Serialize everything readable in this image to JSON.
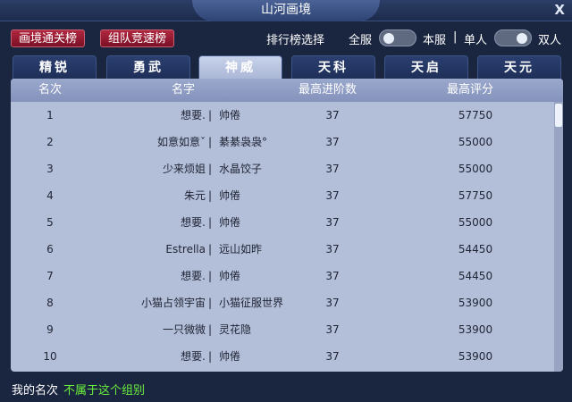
{
  "window": {
    "title": "山河画境",
    "close": "X"
  },
  "top_buttons": [
    "画境通关榜",
    "组队竞速榜"
  ],
  "filter": {
    "label": "排行榜选择",
    "server_left": "全服",
    "server_right": "本服",
    "divider": "|",
    "mode_left": "单人",
    "mode_right": "双人",
    "server_toggle": "全服",
    "mode_toggle": "双人"
  },
  "tabs": [
    "精锐",
    "勇武",
    "神威",
    "天科",
    "天启",
    "天元"
  ],
  "active_tab": "神威",
  "table": {
    "headers": [
      "名次",
      "名字",
      "最高进阶数",
      "最高评分"
    ],
    "rows": [
      {
        "rank": "1",
        "left": "想要.",
        "right": "帅倦",
        "stage": "37",
        "score": "57750"
      },
      {
        "rank": "2",
        "left": "如意如意ˇ",
        "right": "綦綦袅袅°",
        "stage": "37",
        "score": "55000"
      },
      {
        "rank": "3",
        "left": "少来烦姐",
        "right": "水晶饺子",
        "stage": "37",
        "score": "55000"
      },
      {
        "rank": "4",
        "left": "朱元",
        "right": "帅倦",
        "stage": "37",
        "score": "57750"
      },
      {
        "rank": "5",
        "left": "想要.",
        "right": "帅倦",
        "stage": "37",
        "score": "55000"
      },
      {
        "rank": "6",
        "left": "Estrella",
        "right": "远山如昨",
        "stage": "37",
        "score": "54450"
      },
      {
        "rank": "7",
        "left": "想要.",
        "right": "帅倦",
        "stage": "37",
        "score": "54450"
      },
      {
        "rank": "8",
        "left": "小猫占领宇宙",
        "right": "小猫征服世界",
        "stage": "37",
        "score": "53900"
      },
      {
        "rank": "9",
        "left": "一只微微",
        "right": "灵花隐",
        "stage": "37",
        "score": "53900"
      },
      {
        "rank": "10",
        "left": "想要.",
        "right": "帅倦",
        "stage": "37",
        "score": "53900"
      }
    ]
  },
  "footer": {
    "label": "我的名次",
    "status": "不属于这个组别"
  },
  "colors": {
    "status": "#6bf03c",
    "accent_button": "#9a1a30",
    "panel": "#b3bed8"
  }
}
